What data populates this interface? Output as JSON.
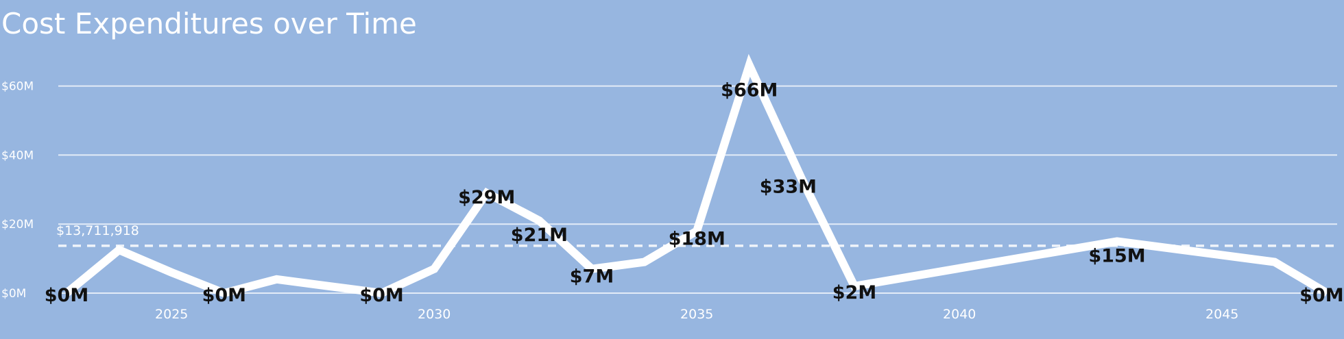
{
  "chart_data": {
    "type": "line",
    "title": "Cost Expenditures over Time",
    "xlabel": "",
    "ylabel": "",
    "x_ticks": [
      2025,
      2030,
      2035,
      2040,
      2045
    ],
    "y_ticks": [
      {
        "value": 0,
        "label": "$0M"
      },
      {
        "value": 20,
        "label": "$20M"
      },
      {
        "value": 40,
        "label": "$40M"
      },
      {
        "value": 60,
        "label": "$60M"
      }
    ],
    "xlim": [
      2023,
      2047
    ],
    "ylim": [
      0,
      66
    ],
    "grid": true,
    "line_color": "#ffffff",
    "background_color": "#97b6e0",
    "reference_line": {
      "value": 13.711918,
      "label": "$13,711,918"
    },
    "series": [
      {
        "points": [
          {
            "x": 2023,
            "y": 0,
            "label": "$0M"
          },
          {
            "x": 2024,
            "y": 12.5,
            "label": ""
          },
          {
            "x": 2025,
            "y": 6,
            "label": ""
          },
          {
            "x": 2026,
            "y": 0,
            "label": "$0M"
          },
          {
            "x": 2027,
            "y": 4,
            "label": ""
          },
          {
            "x": 2028,
            "y": 2,
            "label": ""
          },
          {
            "x": 2029,
            "y": 0,
            "label": "$0M"
          },
          {
            "x": 2030,
            "y": 7,
            "label": ""
          },
          {
            "x": 2031,
            "y": 29,
            "label": "$29M"
          },
          {
            "x": 2032,
            "y": 21,
            "label": "$21M"
          },
          {
            "x": 2033,
            "y": 7,
            "label": "$7M"
          },
          {
            "x": 2034,
            "y": 9,
            "label": ""
          },
          {
            "x": 2035,
            "y": 18,
            "label": "$18M"
          },
          {
            "x": 2036,
            "y": 66,
            "label": "$66M"
          },
          {
            "x": 2037,
            "y": 33,
            "label": "$33M"
          },
          {
            "x": 2038,
            "y": 2,
            "label": "$2M"
          },
          {
            "x": 2043,
            "y": 15,
            "label": "$15M"
          },
          {
            "x": 2046,
            "y": 9,
            "label": ""
          },
          {
            "x": 2047,
            "y": 0,
            "label": "$0M"
          }
        ]
      }
    ]
  }
}
